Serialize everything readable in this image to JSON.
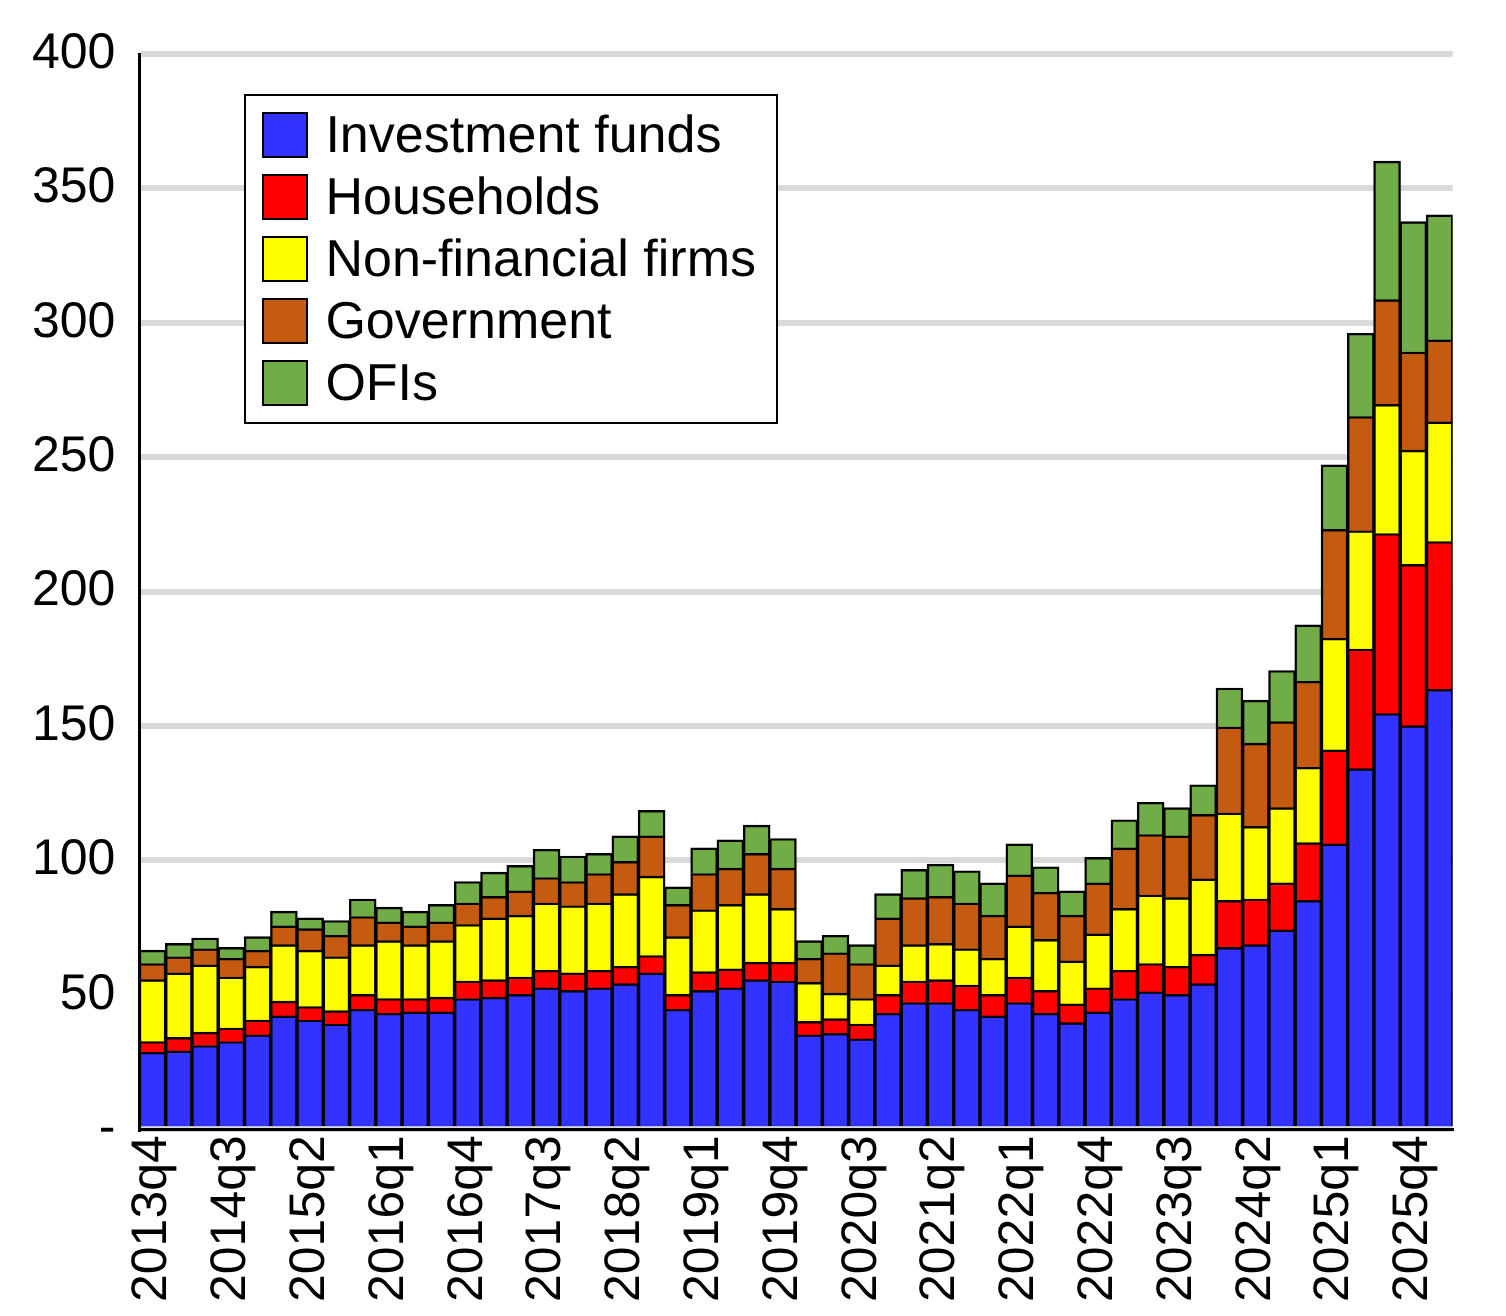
{
  "chart_data": {
    "type": "bar",
    "stacked": true,
    "grid": "y",
    "legend": "top left",
    "categories": [
      "2013q4",
      null,
      null,
      "2014q3",
      null,
      null,
      "2015q2",
      null,
      null,
      "2016q1",
      null,
      null,
      "2016q4",
      null,
      null,
      "2017q3",
      null,
      null,
      "2018q2",
      null,
      null,
      "2019q1",
      null,
      null,
      "2019q4",
      null,
      null,
      "2020q3",
      null,
      null,
      "2021q2",
      null,
      null,
      "2022q1",
      null,
      null,
      "2022q4",
      null,
      null,
      "2023q3",
      null,
      null,
      "2024q2",
      null,
      null,
      "2025q1",
      null,
      null,
      "2025q4",
      null
    ],
    "ylim": [
      0,
      400
    ],
    "yticks": [
      {
        "value": 0,
        "label": "-"
      },
      50,
      100,
      150,
      200,
      250,
      300,
      350,
      400
    ],
    "series": [
      {
        "name": "Investment funds",
        "color": "#3333ff",
        "values": [
          28.5,
          29,
          31,
          32.5,
          35,
          42,
          40.5,
          39,
          44.5,
          43,
          43.5,
          43.5,
          48.5,
          49,
          50,
          52.5,
          51.5,
          52.5,
          54,
          58,
          44.5,
          51.5,
          52.5,
          55.5,
          55,
          35,
          35.5,
          33.5,
          43,
          47,
          47,
          44.5,
          42,
          47,
          43,
          39.5,
          43.5,
          48.5,
          51,
          50,
          54,
          67.5,
          68.5,
          74,
          85,
          106,
          134,
          154.5,
          150,
          163.5
        ]
      },
      {
        "name": "Households",
        "color": "#ff0000",
        "values": [
          4,
          5,
          5,
          5,
          5.5,
          5.5,
          5,
          5,
          5.5,
          5.5,
          5,
          5.5,
          6.5,
          6.5,
          6.5,
          6.5,
          6.5,
          6.5,
          6.5,
          6.5,
          5.5,
          7,
          7,
          6.5,
          7,
          5,
          5.5,
          5.5,
          7,
          8,
          8.5,
          9,
          8,
          9.5,
          8.5,
          7,
          9,
          10.5,
          10.5,
          10.5,
          11,
          17.5,
          17,
          17.5,
          21.5,
          35,
          44.5,
          67,
          60,
          55
        ]
      },
      {
        "name": "Non-financial firms",
        "color": "#ffff00",
        "values": [
          23,
          24,
          25,
          19,
          20,
          21,
          21,
          20,
          18.5,
          21.5,
          20,
          21,
          21,
          23,
          23,
          25,
          25,
          25,
          27,
          29.5,
          21.5,
          23,
          24,
          25.5,
          20,
          14.5,
          9.5,
          9.5,
          11,
          13.5,
          13.5,
          13.5,
          13.5,
          19,
          19,
          16,
          20,
          23,
          25.5,
          25.5,
          28,
          32.5,
          27,
          28,
          28,
          41.5,
          44,
          48,
          42.5,
          44.5
        ]
      },
      {
        "name": "Government",
        "color": "#c55a11",
        "values": [
          6,
          6,
          6,
          7,
          6,
          7,
          8,
          8,
          10.5,
          7,
          7,
          7,
          8,
          8,
          9,
          9.5,
          9,
          11,
          12,
          15,
          12,
          13.5,
          13.5,
          15,
          15,
          9,
          15,
          13,
          17.5,
          17.5,
          17.5,
          17,
          16,
          19,
          17.5,
          17,
          19,
          22.5,
          22.5,
          23,
          24,
          32,
          31,
          32,
          32,
          40.5,
          42.5,
          39,
          36.5,
          30.5
        ]
      },
      {
        "name": "OFIs",
        "color": "#70ad47",
        "values": [
          5,
          5,
          4,
          4,
          5,
          5.5,
          4,
          5.5,
          6.5,
          5.5,
          5.5,
          6.5,
          8,
          9,
          9.5,
          10.5,
          9.5,
          7.5,
          9.5,
          9.5,
          6.5,
          9.5,
          10.5,
          10.5,
          11,
          6.5,
          6.5,
          7,
          9,
          10.5,
          12,
          12,
          12,
          11.5,
          9.5,
          9,
          9.5,
          10.5,
          12,
          10.5,
          11,
          14.5,
          16,
          19,
          21,
          24,
          31,
          51.5,
          48.5,
          46.5
        ]
      }
    ]
  }
}
